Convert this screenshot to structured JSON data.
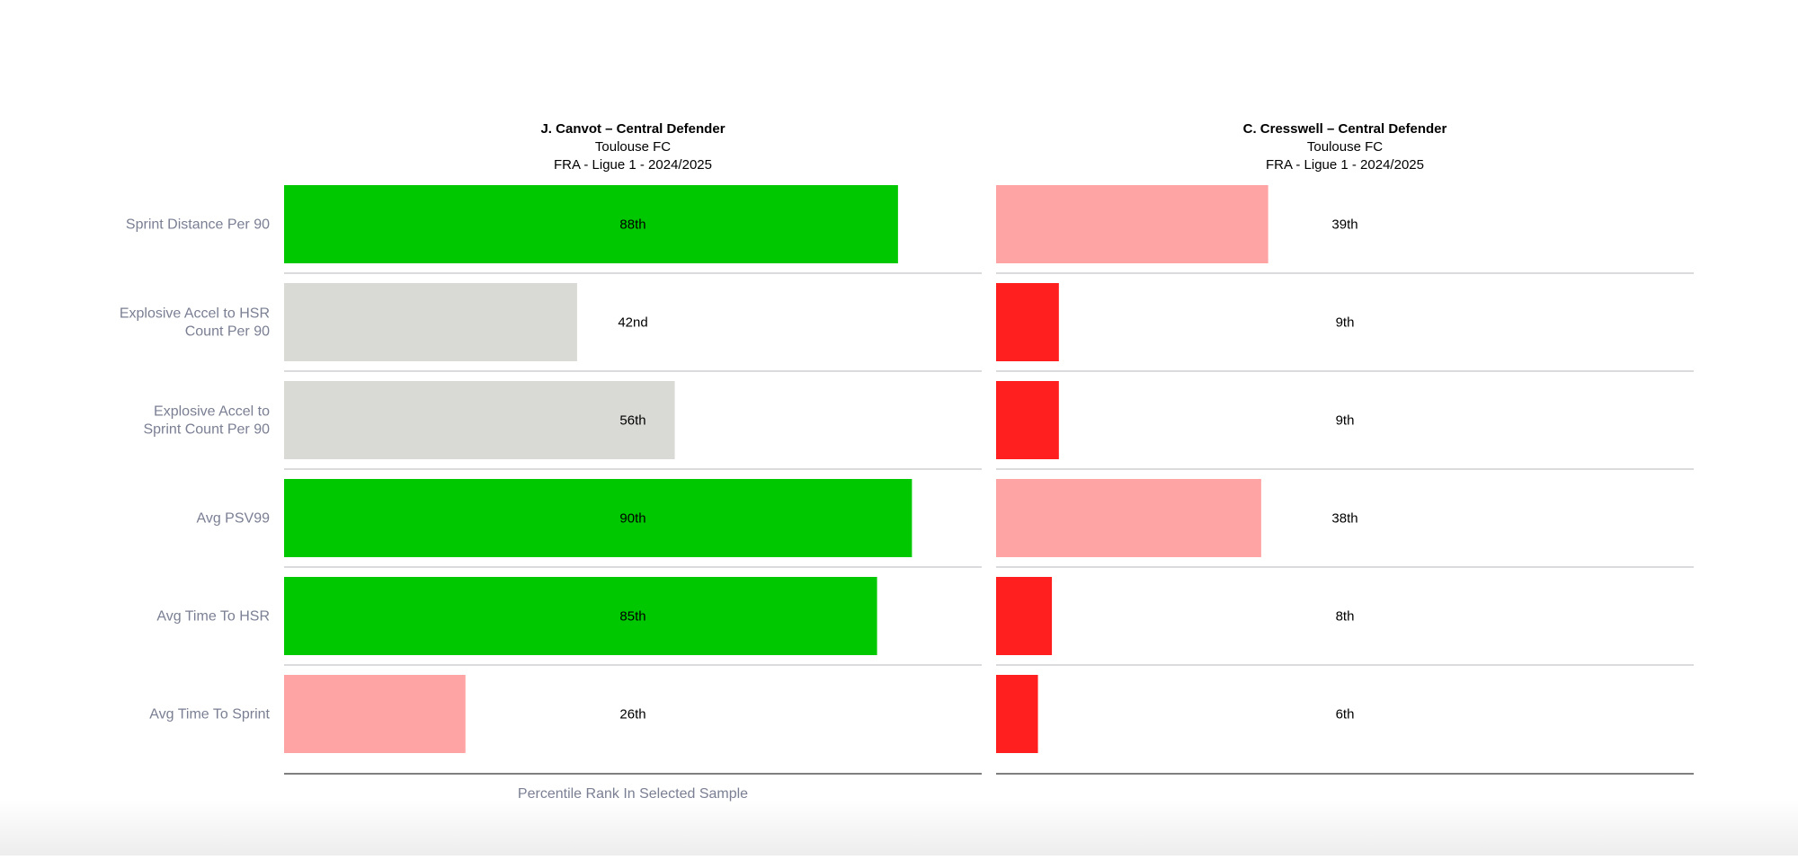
{
  "chart_data": {
    "type": "bar",
    "orientation": "horizontal",
    "categories": [
      "Sprint Distance Per 90",
      "Explosive Accel to HSR Count Per 90",
      "Explosive Accel to Sprint Count Per 90",
      "Avg PSV99",
      "Avg Time To HSR",
      "Avg Time To Sprint"
    ],
    "xlim": [
      0,
      100
    ],
    "xlabel": "Percentile Rank In Selected Sample",
    "colors": {
      "high": "#00c800",
      "average": "#d9d9d5",
      "low": "#ffa4a4",
      "very_low": "#ff1f1f"
    },
    "series": [
      {
        "name": "J. Canvot – Central Defender",
        "team": "Toulouse FC",
        "competition": "FRA - Ligue 1 - 2024/2025",
        "values": [
          88,
          42,
          56,
          90,
          85,
          26
        ],
        "labels": [
          "88th",
          "42nd",
          "56th",
          "90th",
          "85th",
          "26th"
        ]
      },
      {
        "name": "C. Cresswell – Central Defender",
        "team": "Toulouse FC",
        "competition": "FRA - Ligue 1 - 2024/2025",
        "values": [
          39,
          9,
          9,
          38,
          8,
          6
        ],
        "labels": [
          "39th",
          "9th",
          "9th",
          "38th",
          "8th",
          "6th"
        ]
      }
    ]
  }
}
